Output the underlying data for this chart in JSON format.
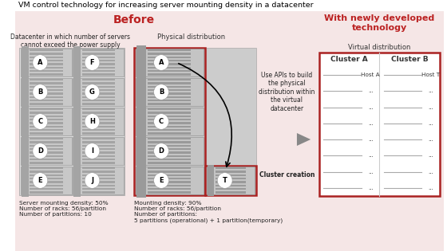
{
  "title": "VM control technology for increasing server mounting density in a datacenter",
  "before_label": "Before",
  "with_label": "With newly developed\ntechnology",
  "datacenter_label": "Datacenter in which number of servers\ncannot exceed the power supply",
  "physical_label": "Physical distribution",
  "virtual_label": "Virtual distribution",
  "rack_letters_left": [
    "A",
    "B",
    "C",
    "D",
    "E"
  ],
  "rack_letters_right": [
    "F",
    "G",
    "H",
    "I",
    "J"
  ],
  "physical_letters_left": [
    "A",
    "B",
    "C",
    "D",
    "E"
  ],
  "cluster_a_label": "Cluster A",
  "cluster_b_label": "Cluster B",
  "host_a_label": "Host A",
  "host_t_label": "Host T",
  "arrow_text1": "Use APIs to build\nthe physical\ndistribution within\nthe virtual\ndatacenter",
  "arrow_text2": "Cluster creation",
  "stats_left": "Server mounting density: 50%\nNumber of racks: 56/partition\nNumber of partitions: 10",
  "stats_right": "Mounting density: 90%\nNumber of racks: 56/partition\nNumber of partitions:\n5 partitions (operational) + 1 partition(temporary)",
  "bg_before": "#f5e6e6",
  "bg_with": "#f5e6e6",
  "red_border": "#aa2222",
  "rack_bg": "#c8c8c8",
  "rack_stripe": "#aaaaaa",
  "cluster_line": "#aaaaaa",
  "gray_arrow": "#888888",
  "title_color": "#000000",
  "before_color": "#bb2222",
  "with_color": "#bb2222"
}
